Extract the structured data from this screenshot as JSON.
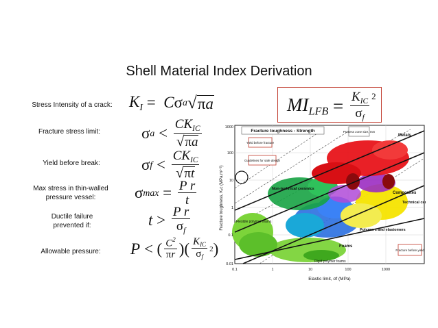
{
  "title": "Shell Material Index Derivation",
  "labels": {
    "stress_intensity": "Stress Intensity of a crack:",
    "fracture_stress": "Fracture stress limit:",
    "yield_before_break": "Yield before break:",
    "max_stress": "Max stress in thin-walled pressure vessel:",
    "ductile_failure": "Ductile failure prevented if:",
    "allowable_pressure": "Allowable pressure:"
  },
  "chart": {
    "title": "Fracture toughness - Strength",
    "ylabel": "Fracture toughness, K₁c (MPa.m¹ᐟ²)",
    "xlabel": "Elastic limit, σf (MPa)",
    "x_ticks": [
      "0.1",
      "1",
      "10",
      "100",
      "1000"
    ],
    "y_ticks": [
      "1000",
      "100",
      "10",
      "1",
      "0.1",
      "0.01"
    ],
    "region_labels": {
      "metals": "Metals",
      "composites": "Composites",
      "technical_ceramics": "Technical ceramics",
      "non_technical_ceramics": "Non-technical ceramics",
      "polymers": "Polymers and elastomers",
      "foams": "Foams",
      "flexible_foams": "Flexible polymer foams",
      "rigid_foams": "Rigid polymer foams"
    },
    "notes": {
      "yield_before_fracture": "Yield before fracture",
      "guidelines": "Guidelines for safe design",
      "process_zone": "Process zone size, mm",
      "fracture_before_yield": "Fracture before yield"
    },
    "colors": {
      "metals": "#e8141a",
      "composites": "#9b2cc2",
      "ceramics": "#f5e400",
      "non_tech_ceramics": "#17a344",
      "polymers": "#2a6fe0",
      "foams": "#7cd43a",
      "natural": "#1aa8d8"
    }
  }
}
